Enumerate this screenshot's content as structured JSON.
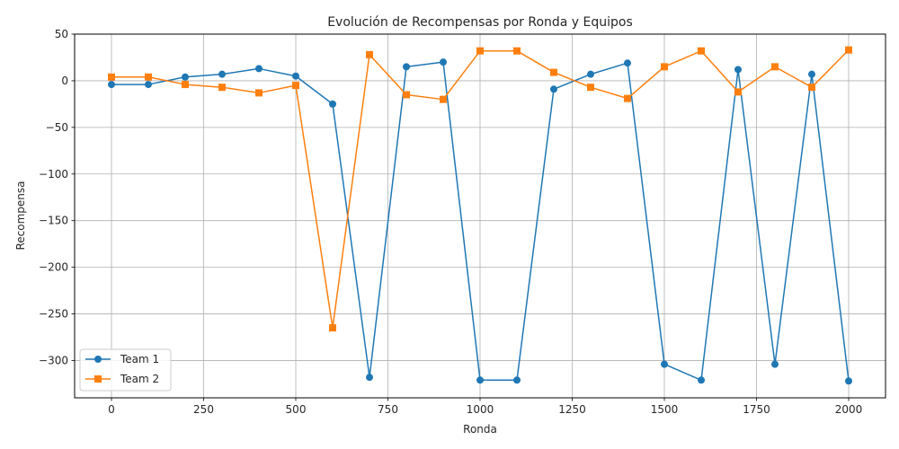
{
  "chart_data": {
    "type": "line",
    "title": "Evolución de Recompensas por Ronda y Equipos",
    "xlabel": "Ronda",
    "ylabel": "Recompensa",
    "xlim": [
      -100,
      2100
    ],
    "ylim": [
      -340,
      50
    ],
    "x_ticks": [
      0,
      250,
      500,
      750,
      1000,
      1250,
      1500,
      1750,
      2000
    ],
    "y_ticks": [
      50,
      0,
      -50,
      -100,
      -150,
      -200,
      -250,
      -300
    ],
    "grid": true,
    "legend_position": "lower-left",
    "x": [
      0,
      100,
      200,
      300,
      400,
      500,
      600,
      700,
      800,
      900,
      1000,
      1100,
      1200,
      1300,
      1400,
      1500,
      1600,
      1700,
      1800,
      1900,
      2000
    ],
    "series": [
      {
        "name": "Team 1",
        "color": "#1f77b4",
        "marker": "circle",
        "values": [
          -4,
          -4,
          4,
          7,
          13,
          5,
          -25,
          -318,
          15,
          20,
          -321,
          -321,
          -9,
          7,
          19,
          -304,
          -321,
          12,
          -304,
          7,
          -322
        ]
      },
      {
        "name": "Team 2",
        "color": "#ff7f0e",
        "marker": "square",
        "values": [
          4,
          4,
          -4,
          -7,
          -13,
          -5,
          -265,
          28,
          -15,
          -20,
          32,
          32,
          9,
          -7,
          -19,
          15,
          32,
          -12,
          15,
          -7,
          33
        ]
      }
    ]
  }
}
